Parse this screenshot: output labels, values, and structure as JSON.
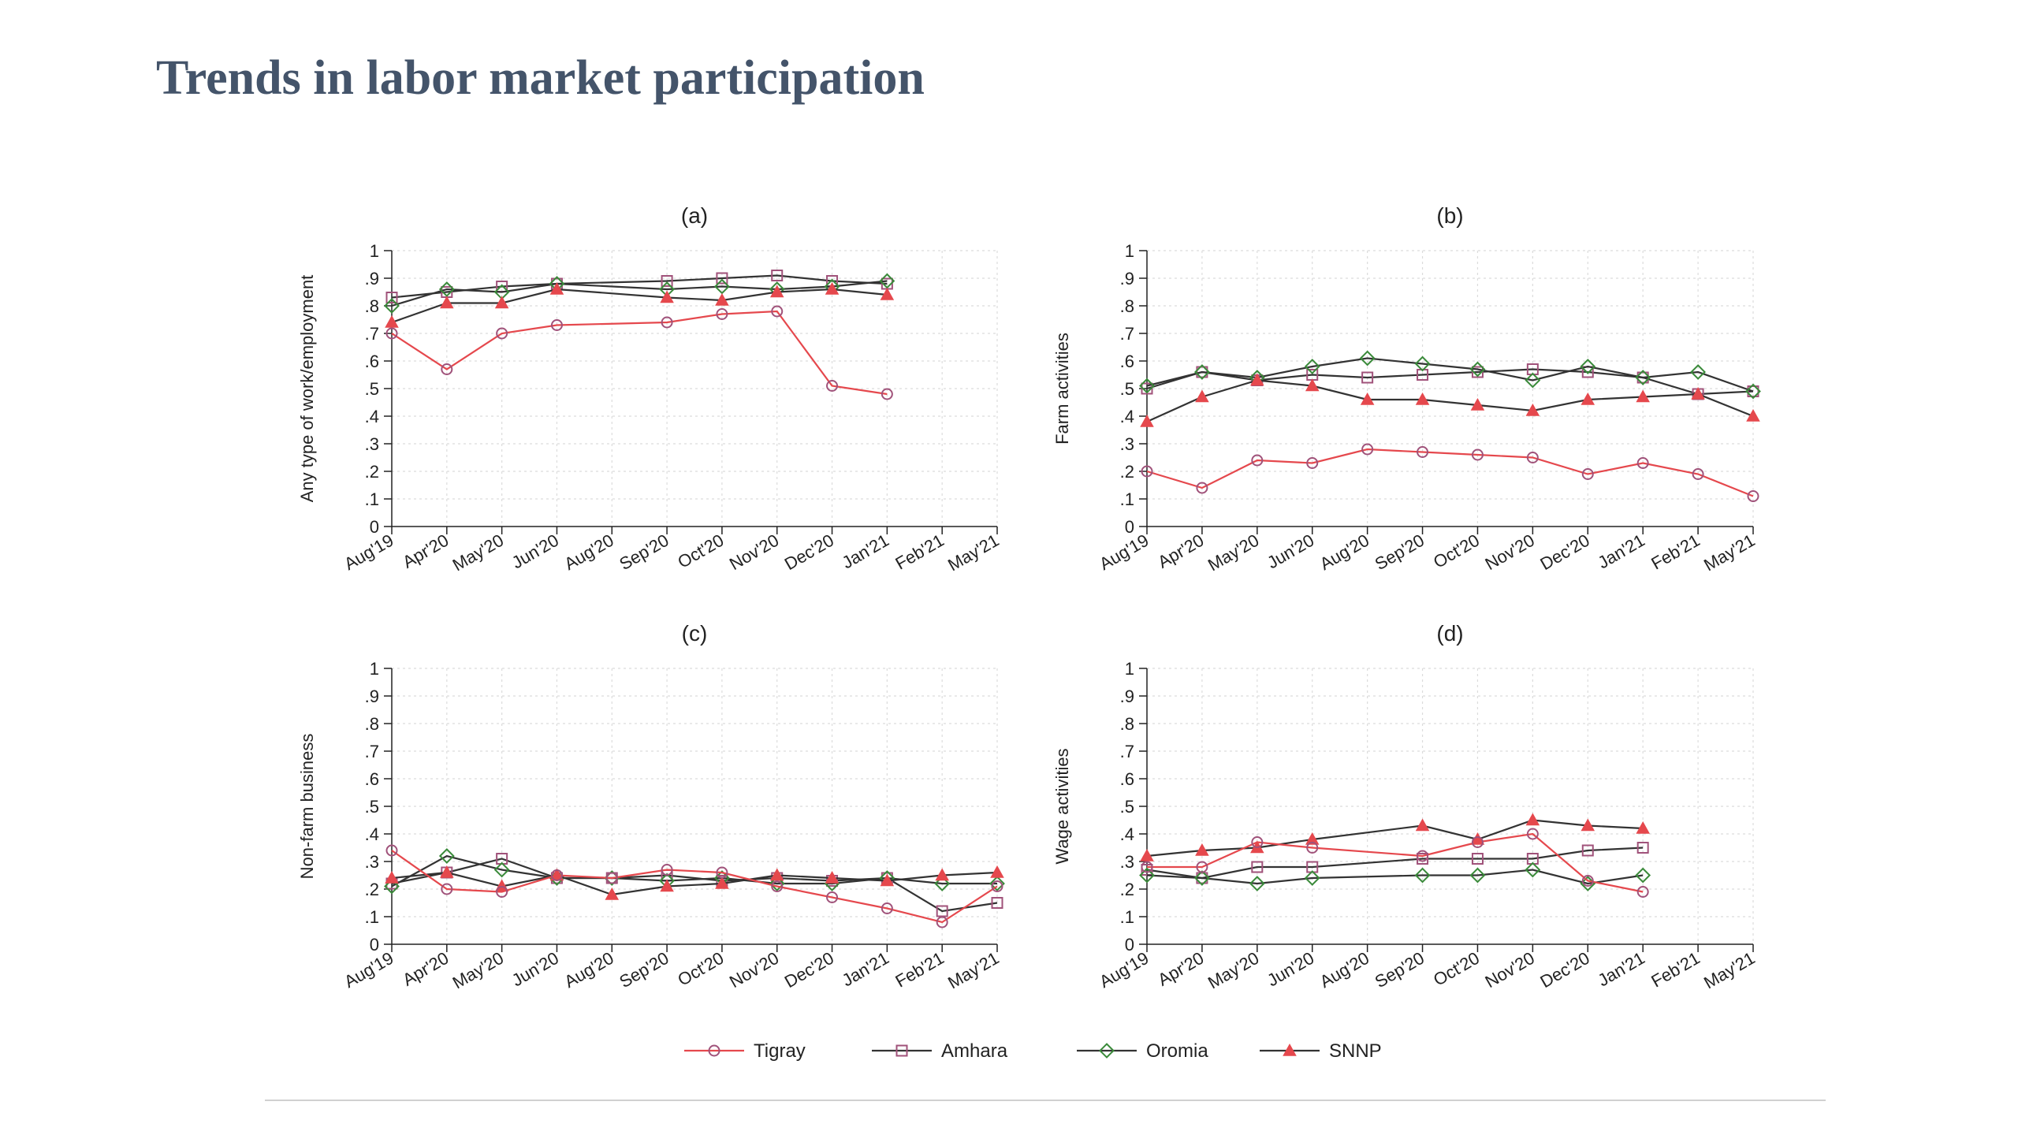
{
  "slide": {
    "title": "Trends in labor market participation"
  },
  "legend": [
    {
      "name": "Tigray",
      "color": "#e5484d",
      "marker": "circle"
    },
    {
      "name": "Amhara",
      "color": "#333333",
      "marker": "square"
    },
    {
      "name": "Oromia",
      "color": "#333333",
      "marker": "diamond"
    },
    {
      "name": "SNNP",
      "color": "#333333",
      "marker": "triangle"
    }
  ],
  "marker_colors": {
    "Tigray": "#a0527a",
    "Amhara": "#a0527a",
    "Oromia": "#3a8a3a",
    "SNNP": "#e5484d",
    "line_dark": "#333333",
    "line_red": "#e5484d"
  },
  "chart_data": [
    {
      "type": "line",
      "title": "(a)",
      "ylabel": "Any type of work/employment",
      "ylim": [
        0,
        1
      ],
      "yticks": [
        "0",
        ".1",
        ".2",
        ".3",
        ".4",
        ".5",
        ".6",
        ".7",
        ".8",
        ".9",
        "1"
      ],
      "categories": [
        "Aug'19",
        "Apr'20",
        "May'20",
        "Jun'20",
        "Aug'20",
        "Sep'20",
        "Oct'20",
        "Nov'20",
        "Dec'20",
        "Jan'21",
        "Feb'21",
        "May'21"
      ],
      "grid": true,
      "series": [
        {
          "name": "Tigray",
          "values": [
            0.7,
            0.57,
            0.7,
            0.73,
            null,
            0.74,
            0.77,
            0.78,
            0.51,
            0.48,
            null,
            null
          ]
        },
        {
          "name": "Amhara",
          "values": [
            0.83,
            0.85,
            0.87,
            0.88,
            null,
            0.89,
            0.9,
            0.91,
            0.89,
            0.88,
            null,
            null
          ]
        },
        {
          "name": "Oromia",
          "values": [
            0.8,
            0.86,
            0.85,
            0.88,
            null,
            0.86,
            0.87,
            0.86,
            0.87,
            0.89,
            null,
            null
          ]
        },
        {
          "name": "SNNP",
          "values": [
            0.74,
            0.81,
            0.81,
            0.86,
            null,
            0.83,
            0.82,
            0.85,
            0.86,
            0.84,
            null,
            null
          ]
        }
      ]
    },
    {
      "type": "line",
      "title": "(b)",
      "ylabel": "Farm activities",
      "ylim": [
        0,
        1
      ],
      "yticks": [
        "0",
        ".1",
        ".2",
        ".3",
        ".4",
        ".5",
        ".6",
        ".7",
        ".8",
        ".9",
        "1"
      ],
      "categories": [
        "Aug'19",
        "Apr'20",
        "May'20",
        "Jun'20",
        "Aug'20",
        "Sep'20",
        "Oct'20",
        "Nov'20",
        "Dec'20",
        "Jan'21",
        "Feb'21",
        "May'21"
      ],
      "grid": true,
      "series": [
        {
          "name": "Tigray",
          "values": [
            0.2,
            0.14,
            0.24,
            0.23,
            0.28,
            0.27,
            0.26,
            0.25,
            0.19,
            0.23,
            0.19,
            0.11
          ]
        },
        {
          "name": "Amhara",
          "values": [
            0.5,
            0.56,
            0.53,
            0.55,
            0.54,
            0.55,
            0.56,
            0.57,
            0.56,
            0.54,
            0.48,
            0.49
          ]
        },
        {
          "name": "Oromia",
          "values": [
            0.51,
            0.56,
            0.54,
            0.58,
            0.61,
            0.59,
            0.57,
            0.53,
            0.58,
            0.54,
            0.56,
            0.49
          ]
        },
        {
          "name": "SNNP",
          "values": [
            0.38,
            0.47,
            0.53,
            0.51,
            0.46,
            0.46,
            0.44,
            0.42,
            0.46,
            0.47,
            0.48,
            0.4
          ]
        }
      ]
    },
    {
      "type": "line",
      "title": "(c)",
      "ylabel": "Non-farm business",
      "ylim": [
        0,
        1
      ],
      "yticks": [
        "0",
        ".1",
        ".2",
        ".3",
        ".4",
        ".5",
        ".6",
        ".7",
        ".8",
        ".9",
        "1"
      ],
      "categories": [
        "Aug'19",
        "Apr'20",
        "May'20",
        "Jun'20",
        "Aug'20",
        "Sep'20",
        "Oct'20",
        "Nov'20",
        "Dec'20",
        "Jan'21",
        "Feb'21",
        "May'21"
      ],
      "grid": true,
      "series": [
        {
          "name": "Tigray",
          "values": [
            0.34,
            0.2,
            0.19,
            0.25,
            0.24,
            0.27,
            0.26,
            0.21,
            0.17,
            0.13,
            0.08,
            0.21
          ]
        },
        {
          "name": "Amhara",
          "values": [
            0.22,
            0.26,
            0.31,
            0.24,
            0.24,
            0.25,
            0.23,
            0.24,
            0.23,
            0.24,
            0.12,
            0.15
          ]
        },
        {
          "name": "Oromia",
          "values": [
            0.21,
            0.32,
            0.27,
            0.24,
            0.24,
            0.23,
            0.24,
            0.22,
            0.22,
            0.24,
            0.22,
            0.22
          ]
        },
        {
          "name": "SNNP",
          "values": [
            0.24,
            0.26,
            0.21,
            0.25,
            0.18,
            0.21,
            0.22,
            0.25,
            0.24,
            0.23,
            0.25,
            0.26
          ]
        }
      ]
    },
    {
      "type": "line",
      "title": "(d)",
      "ylabel": "Wage activities",
      "ylim": [
        0,
        1
      ],
      "yticks": [
        "0",
        ".1",
        ".2",
        ".3",
        ".4",
        ".5",
        ".6",
        ".7",
        ".8",
        ".9",
        "1"
      ],
      "categories": [
        "Aug'19",
        "Apr'20",
        "May'20",
        "Jun'20",
        "Aug'20",
        "Sep'20",
        "Oct'20",
        "Nov'20",
        "Dec'20",
        "Jan'21",
        "Feb'21",
        "May'21"
      ],
      "grid": true,
      "series": [
        {
          "name": "Tigray",
          "values": [
            0.28,
            0.28,
            0.37,
            0.35,
            null,
            0.32,
            0.37,
            0.4,
            0.23,
            0.19,
            null,
            null
          ]
        },
        {
          "name": "Amhara",
          "values": [
            0.27,
            0.24,
            0.28,
            0.28,
            null,
            0.31,
            0.31,
            0.31,
            0.34,
            0.35,
            null,
            null
          ]
        },
        {
          "name": "Oromia",
          "values": [
            0.25,
            0.24,
            0.22,
            0.24,
            null,
            0.25,
            0.25,
            0.27,
            0.22,
            0.25,
            null,
            null
          ]
        },
        {
          "name": "SNNP",
          "values": [
            0.32,
            0.34,
            0.35,
            0.38,
            null,
            0.43,
            0.38,
            0.45,
            0.43,
            0.42,
            null,
            null
          ]
        }
      ]
    }
  ]
}
